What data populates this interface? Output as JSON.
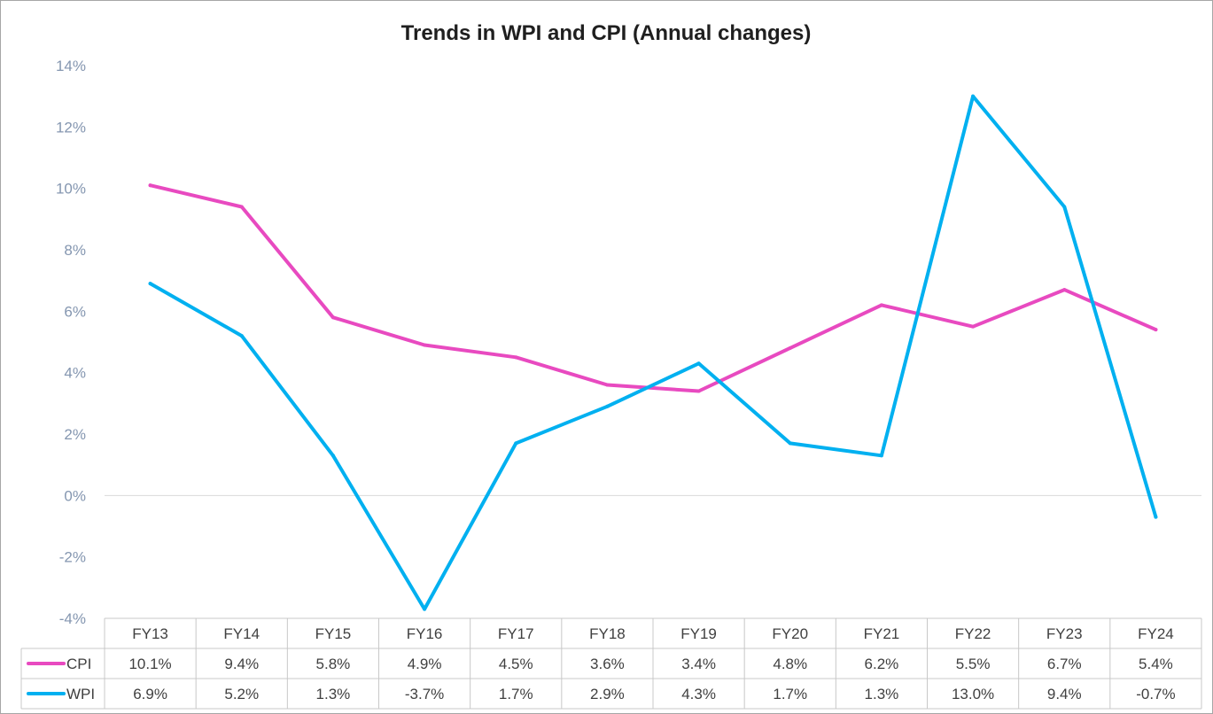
{
  "chart_data": {
    "type": "line",
    "title": "Trends in WPI and CPI (Annual changes)",
    "categories": [
      "FY13",
      "FY14",
      "FY15",
      "FY16",
      "FY17",
      "FY18",
      "FY19",
      "FY20",
      "FY21",
      "FY22",
      "FY23",
      "FY24"
    ],
    "ylim": [
      -4,
      14
    ],
    "yticks": [
      -4,
      -2,
      0,
      2,
      4,
      6,
      8,
      10,
      12,
      14
    ],
    "ytick_labels": [
      "-4%",
      "-2%",
      "0%",
      "2%",
      "4%",
      "6%",
      "8%",
      "10%",
      "12%",
      "14%"
    ],
    "grid": false,
    "legend": "data-table-left",
    "series": [
      {
        "name": "CPI",
        "color": "#e84ac0",
        "values": [
          10.1,
          9.4,
          5.8,
          4.9,
          4.5,
          3.6,
          3.4,
          4.8,
          6.2,
          5.5,
          6.7,
          5.4
        ],
        "labels": [
          "10.1%",
          "9.4%",
          "5.8%",
          "4.9%",
          "4.5%",
          "3.6%",
          "3.4%",
          "4.8%",
          "6.2%",
          "5.5%",
          "6.7%",
          "5.4%"
        ]
      },
      {
        "name": "WPI",
        "color": "#00b0f0",
        "values": [
          6.9,
          5.2,
          1.3,
          -3.7,
          1.7,
          2.9,
          4.3,
          1.7,
          1.3,
          13.0,
          9.4,
          -0.7
        ],
        "labels": [
          "6.9%",
          "5.2%",
          "1.3%",
          "-3.7%",
          "1.7%",
          "2.9%",
          "4.3%",
          "1.7%",
          "1.3%",
          "13.0%",
          "9.4%",
          "-0.7%"
        ]
      }
    ]
  }
}
